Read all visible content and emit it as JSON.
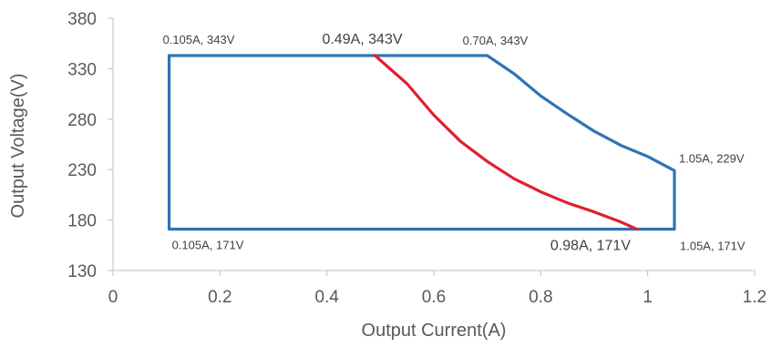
{
  "chart_data": {
    "type": "line",
    "title": "",
    "xlabel": "Output Current(A)",
    "ylabel": "Output Voltage(V)",
    "xlim": [
      0,
      1.2
    ],
    "ylim": [
      130,
      380
    ],
    "x_ticks": [
      0,
      0.2,
      0.4,
      0.6,
      0.8,
      1,
      1.2
    ],
    "x_tick_labels": [
      "0",
      "0.2",
      "0.4",
      "0.6",
      "0.8",
      "1",
      "1.2"
    ],
    "y_ticks": [
      130,
      180,
      230,
      280,
      330,
      380
    ],
    "y_tick_labels": [
      "130",
      "180",
      "230",
      "280",
      "330",
      "380"
    ],
    "grid": false,
    "legend": "none",
    "series": [
      {
        "color": "#2e74b5",
        "points": [
          [
            0.105,
            343
          ],
          [
            0.7,
            343
          ],
          [
            0.75,
            325
          ],
          [
            0.8,
            303
          ],
          [
            0.85,
            285
          ],
          [
            0.9,
            268
          ],
          [
            0.95,
            254
          ],
          [
            1.0,
            243
          ],
          [
            1.05,
            229
          ],
          [
            1.05,
            171
          ],
          [
            0.105,
            171
          ],
          [
            0.105,
            343
          ]
        ]
      },
      {
        "color": "#e0202e",
        "points": [
          [
            0.49,
            343
          ],
          [
            0.55,
            315
          ],
          [
            0.6,
            284
          ],
          [
            0.65,
            258
          ],
          [
            0.7,
            238
          ],
          [
            0.75,
            221
          ],
          [
            0.8,
            208
          ],
          [
            0.85,
            197
          ],
          [
            0.9,
            188
          ],
          [
            0.95,
            178
          ],
          [
            0.98,
            171
          ]
        ]
      }
    ],
    "annotations": [
      {
        "text": "0.105A, 343V",
        "x": 0.105,
        "y": 343,
        "size": "small"
      },
      {
        "text": "0.49A, 343V",
        "x": 0.49,
        "y": 343,
        "size": "large"
      },
      {
        "text": "0.70A, 343V",
        "x": 0.7,
        "y": 343,
        "size": "small"
      },
      {
        "text": "1.05A, 229V",
        "x": 1.05,
        "y": 229,
        "size": "small"
      },
      {
        "text": "0.105A, 171V",
        "x": 0.105,
        "y": 171,
        "size": "small"
      },
      {
        "text": "0.98A, 171V",
        "x": 0.98,
        "y": 171,
        "size": "large"
      },
      {
        "text": "1.05A, 171V",
        "x": 1.05,
        "y": 171,
        "size": "small"
      }
    ]
  }
}
